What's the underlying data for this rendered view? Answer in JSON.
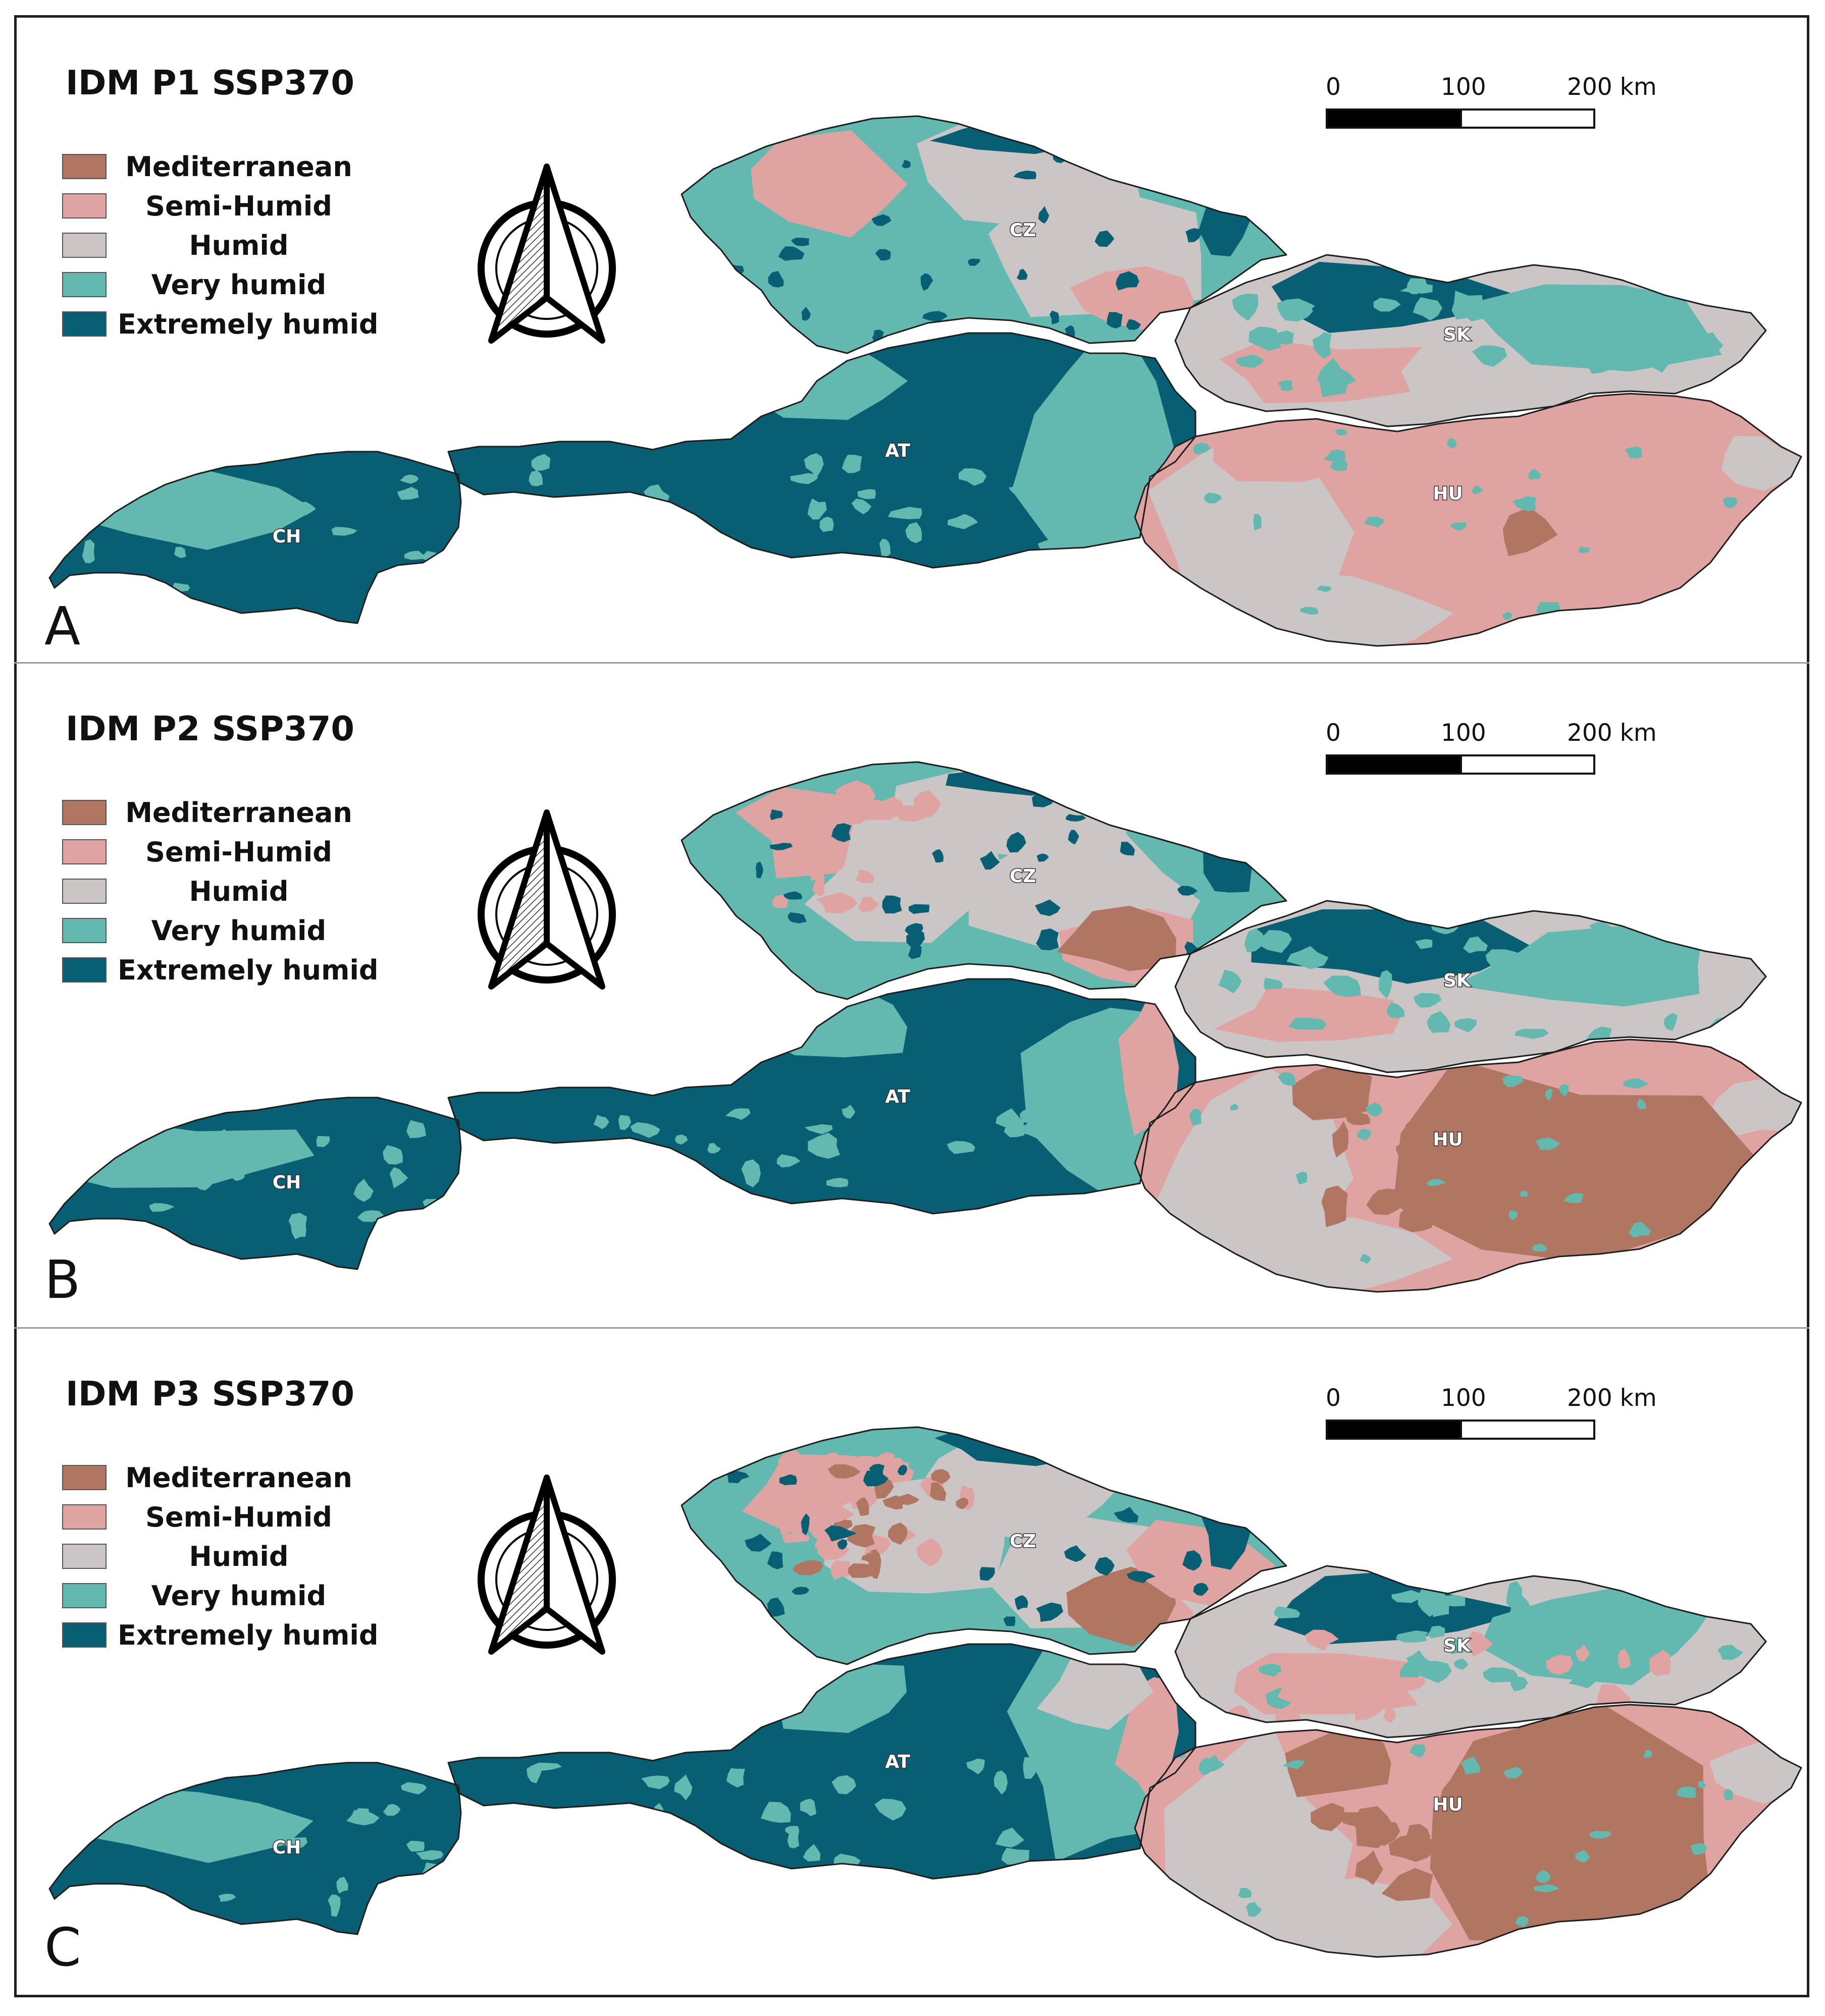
{
  "legend_items": [
    {
      "label": "Mediterranean",
      "color": "#B07662"
    },
    {
      "label": "Semi-Humid",
      "color": "#DFA3A2"
    },
    {
      "label": "Humid",
      "color": "#CBC5C5"
    },
    {
      "label": "Very humid",
      "color": "#63B8B0"
    },
    {
      "label": "Extremely humid",
      "color": "#085E72"
    }
  ],
  "scale_bar": {
    "tick_0": "0",
    "tick_1": "100",
    "tick_2": "200 km"
  },
  "countries": {
    "cz": "CZ",
    "sk": "SK",
    "at": "AT",
    "hu": "HU",
    "ch": "CH"
  },
  "panels": [
    {
      "id": "A",
      "title": "IDM P1 SSP370",
      "letter": "A",
      "dry_level": 1
    },
    {
      "id": "B",
      "title": "IDM P2 SSP370",
      "letter": "B",
      "dry_level": 2
    },
    {
      "id": "C",
      "title": "IDM P3 SSP370",
      "letter": "C",
      "dry_level": 3
    }
  ]
}
